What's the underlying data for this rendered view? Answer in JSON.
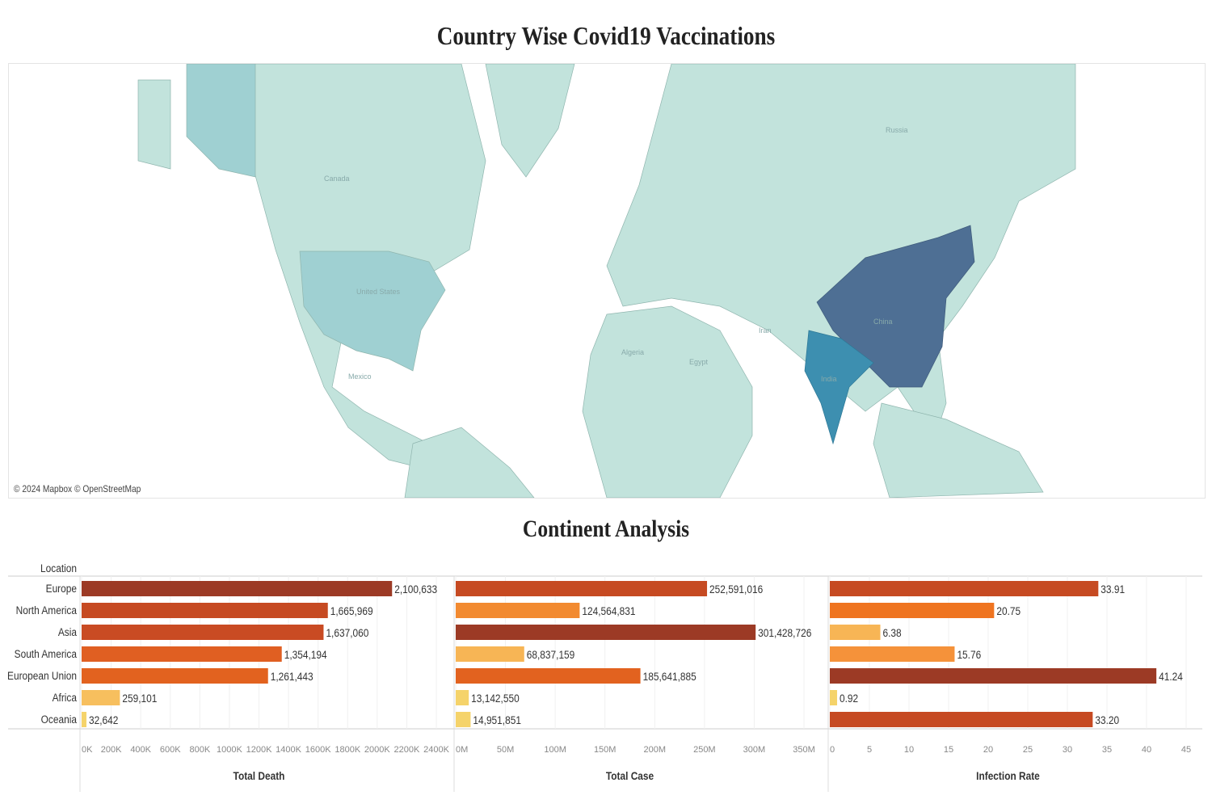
{
  "title": "Country Wise Covid19 Vaccinations",
  "map": {
    "credit": "© 2024 Mapbox © OpenStreetMap",
    "labels": {
      "russia": "Russia",
      "canada": "Canada",
      "us": "United States",
      "mexico": "Mexico",
      "china": "China",
      "india": "India",
      "algeria": "Algeria",
      "egypt": "Egypt",
      "iran": "Iran"
    },
    "colors": {
      "base": "#c2e3dc",
      "us": "#9fd0d2",
      "china": "#4e6f94",
      "india": "#3d8fb0"
    }
  },
  "section_title": "Continent Analysis",
  "chart_data": [
    {
      "type": "bar",
      "title": "Total Death",
      "xlabel": "Total Death",
      "ylabel": "Location",
      "categories": [
        "Europe",
        "North America",
        "Asia",
        "South America",
        "European Union",
        "Africa",
        "Oceania"
      ],
      "values": [
        2100633,
        1665969,
        1637060,
        1354194,
        1261443,
        259101,
        32642
      ],
      "labels": [
        "2,100,633",
        "1,665,969",
        "1,637,060",
        "1,354,194",
        "1,261,443",
        "259,101",
        "32,642"
      ],
      "colors": [
        "#9c3a25",
        "#c64a22",
        "#c94b23",
        "#e05f22",
        "#e2621f",
        "#f7bf5e",
        "#f5d36a"
      ],
      "xlim": [
        0,
        2400000
      ],
      "ticks": [
        0,
        200000,
        400000,
        600000,
        800000,
        1000000,
        1200000,
        1400000,
        1600000,
        1800000,
        2000000,
        2200000,
        2400000
      ],
      "tick_labels": [
        "0K",
        "200K",
        "400K",
        "600K",
        "800K",
        "1000K",
        "1200K",
        "1400K",
        "1600K",
        "1800K",
        "2000K",
        "2200K",
        "2400K"
      ]
    },
    {
      "type": "bar",
      "title": "Total Case",
      "xlabel": "Total Case",
      "categories": [
        "Europe",
        "North America",
        "Asia",
        "South America",
        "European Union",
        "Africa",
        "Oceania"
      ],
      "values": [
        252591016,
        124564831,
        301428726,
        68837159,
        185641885,
        13142550,
        14951851
      ],
      "labels": [
        "252,591,016",
        "124,564,831",
        "301,428,726",
        "68,837,159",
        "185,641,885",
        "13,142,550",
        "14,951,851"
      ],
      "colors": [
        "#c64a22",
        "#f28a30",
        "#9c3a25",
        "#f7b555",
        "#e2621f",
        "#f5d36a",
        "#f5d36a"
      ],
      "xlim": [
        0,
        350000000
      ],
      "ticks": [
        0,
        50000000,
        100000000,
        150000000,
        200000000,
        250000000,
        300000000,
        350000000
      ],
      "tick_labels": [
        "0M",
        "50M",
        "100M",
        "150M",
        "200M",
        "250M",
        "300M",
        "350M"
      ]
    },
    {
      "type": "bar",
      "title": "Infection Rate",
      "xlabel": "Infection Rate",
      "categories": [
        "Europe",
        "North America",
        "Asia",
        "South America",
        "European Union",
        "Africa",
        "Oceania"
      ],
      "values": [
        33.91,
        20.75,
        6.38,
        15.76,
        41.24,
        0.92,
        33.2
      ],
      "labels": [
        "33.91",
        "20.75",
        "6.38",
        "15.76",
        "41.24",
        "0.92",
        "33.20"
      ],
      "colors": [
        "#c64a22",
        "#ef7420",
        "#f7b555",
        "#f5923a",
        "#9c3a25",
        "#f5d36a",
        "#c64a22"
      ],
      "xlim": [
        0,
        45
      ],
      "ticks": [
        0,
        5,
        10,
        15,
        20,
        25,
        30,
        35,
        40,
        45
      ],
      "tick_labels": [
        "0",
        "5",
        "10",
        "15",
        "20",
        "25",
        "30",
        "35",
        "40",
        "45"
      ]
    }
  ]
}
